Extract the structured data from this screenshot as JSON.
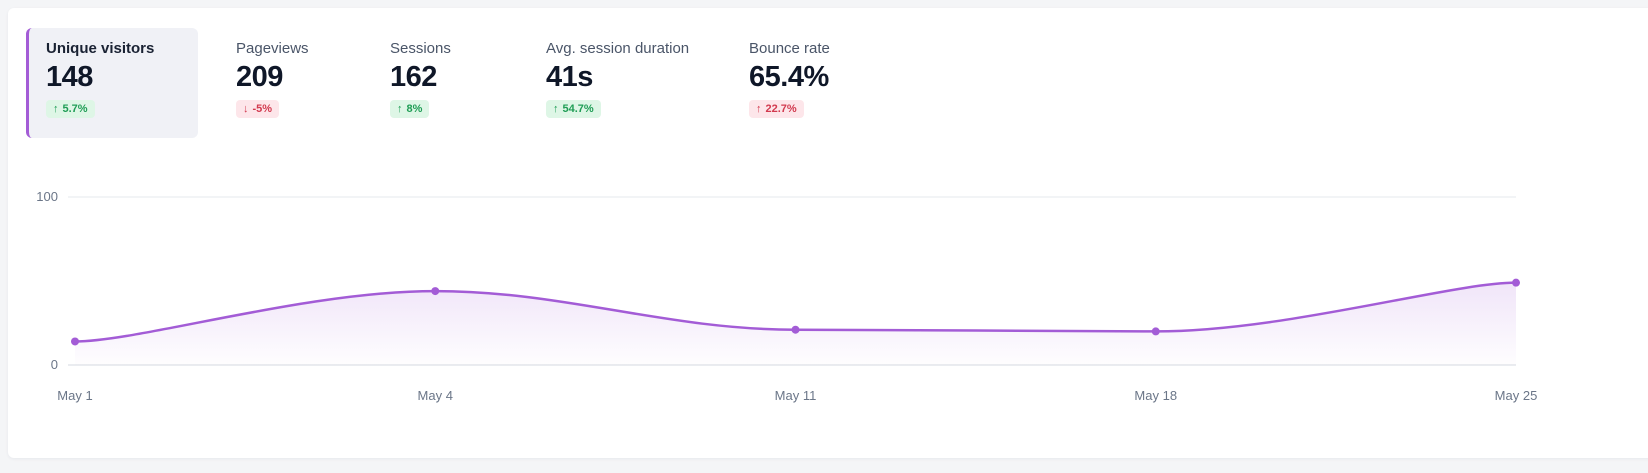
{
  "metrics": [
    {
      "label": "Unique visitors",
      "value": "148",
      "change": "5.7%",
      "direction": "up",
      "tone": "good",
      "active": true
    },
    {
      "label": "Pageviews",
      "value": "209",
      "change": "-5%",
      "direction": "down",
      "tone": "bad",
      "active": false
    },
    {
      "label": "Sessions",
      "value": "162",
      "change": "8%",
      "direction": "up",
      "tone": "good",
      "active": false
    },
    {
      "label": "Avg. session duration",
      "value": "41s",
      "change": "54.7%",
      "direction": "up",
      "tone": "good",
      "active": false
    },
    {
      "label": "Bounce rate",
      "value": "65.4%",
      "change": "22.7%",
      "direction": "up",
      "tone": "bad",
      "active": false
    }
  ],
  "colors": {
    "accent": "#a35cd6",
    "good": "#1f9d55",
    "bad": "#d23a4f"
  },
  "chart_data": {
    "type": "line",
    "title": "",
    "xlabel": "",
    "ylabel": "",
    "x": [
      "May 1",
      "May 4",
      "May 11",
      "May 18",
      "May 25"
    ],
    "series": [
      {
        "values": [
          14,
          44,
          21,
          20,
          49
        ]
      }
    ],
    "ylim": [
      0,
      100
    ],
    "yticks": [
      "0",
      "100"
    ],
    "grid": true,
    "smooth": true
  }
}
